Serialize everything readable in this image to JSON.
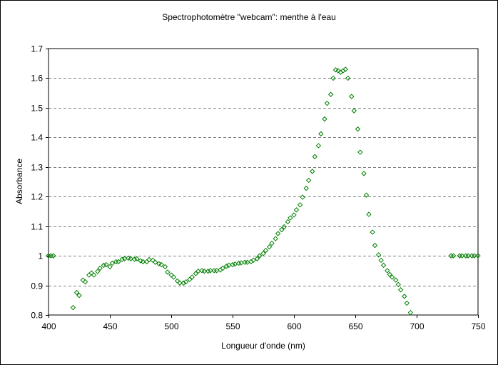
{
  "chart_data": {
    "type": "scatter",
    "title": "Spectrophotomètre \"webcam\": menthe à l'eau",
    "xlabel": "Longueur d'onde (nm)",
    "ylabel": "Absorbance",
    "xlim": [
      400,
      750
    ],
    "ylim": [
      0.8,
      1.7
    ],
    "x_ticks": [
      400,
      450,
      500,
      550,
      600,
      650,
      700,
      750
    ],
    "x_tick_labels": [
      "400",
      "450",
      "500",
      "550",
      "600",
      "650",
      "700",
      "750"
    ],
    "y_ticks": [
      0.8,
      0.9,
      1.0,
      1.1,
      1.2,
      1.3,
      1.4,
      1.5,
      1.6,
      1.7
    ],
    "y_tick_labels": [
      "0.8",
      "0.9",
      "1",
      "1.1",
      "1.2",
      "1.3",
      "1.4",
      "1.5",
      "1.6",
      "1.7"
    ],
    "grid": "horizontal dashed",
    "legend": "none",
    "marker": "open diamond",
    "marker_color": "#008000",
    "series": [
      {
        "points": [
          [
            400,
            1.0
          ],
          [
            402,
            1.0
          ],
          [
            404,
            1.0
          ],
          [
            420,
            0.825
          ],
          [
            423,
            0.876
          ],
          [
            425,
            0.866
          ],
          [
            428,
            0.918
          ],
          [
            430,
            0.912
          ],
          [
            433,
            0.935
          ],
          [
            435,
            0.942
          ],
          [
            437,
            0.935
          ],
          [
            440,
            0.947
          ],
          [
            442,
            0.958
          ],
          [
            445,
            0.968
          ],
          [
            447,
            0.97
          ],
          [
            450,
            0.963
          ],
          [
            452,
            0.975
          ],
          [
            455,
            0.98
          ],
          [
            457,
            0.98
          ],
          [
            460,
            0.988
          ],
          [
            462,
            0.99
          ],
          [
            465,
            0.992
          ],
          [
            467,
            0.99
          ],
          [
            470,
            0.988
          ],
          [
            472,
            0.99
          ],
          [
            475,
            0.983
          ],
          [
            477,
            0.98
          ],
          [
            480,
            0.98
          ],
          [
            482,
            0.987
          ],
          [
            485,
            0.985
          ],
          [
            487,
            0.978
          ],
          [
            490,
            0.973
          ],
          [
            492,
            0.97
          ],
          [
            495,
            0.963
          ],
          [
            497,
            0.945
          ],
          [
            500,
            0.935
          ],
          [
            502,
            0.928
          ],
          [
            505,
            0.915
          ],
          [
            507,
            0.908
          ],
          [
            510,
            0.908
          ],
          [
            512,
            0.912
          ],
          [
            515,
            0.92
          ],
          [
            517,
            0.928
          ],
          [
            520,
            0.94
          ],
          [
            522,
            0.948
          ],
          [
            525,
            0.95
          ],
          [
            527,
            0.948
          ],
          [
            530,
            0.948
          ],
          [
            532,
            0.95
          ],
          [
            535,
            0.95
          ],
          [
            537,
            0.95
          ],
          [
            540,
            0.952
          ],
          [
            542,
            0.958
          ],
          [
            545,
            0.965
          ],
          [
            547,
            0.968
          ],
          [
            550,
            0.97
          ],
          [
            552,
            0.972
          ],
          [
            555,
            0.975
          ],
          [
            557,
            0.976
          ],
          [
            560,
            0.978
          ],
          [
            562,
            0.978
          ],
          [
            565,
            0.98
          ],
          [
            567,
            0.985
          ],
          [
            570,
            0.99
          ],
          [
            572,
            1.0
          ],
          [
            575,
            1.008
          ],
          [
            577,
            1.018
          ],
          [
            580,
            1.03
          ],
          [
            582,
            1.042
          ],
          [
            585,
            1.058
          ],
          [
            587,
            1.075
          ],
          [
            590,
            1.088
          ],
          [
            592,
            1.098
          ],
          [
            595,
            1.115
          ],
          [
            597,
            1.128
          ],
          [
            600,
            1.138
          ],
          [
            602,
            1.155
          ],
          [
            605,
            1.172
          ],
          [
            607,
            1.198
          ],
          [
            610,
            1.228
          ],
          [
            612,
            1.255
          ],
          [
            615,
            1.285
          ],
          [
            617,
            1.335
          ],
          [
            620,
            1.372
          ],
          [
            622,
            1.412
          ],
          [
            625,
            1.462
          ],
          [
            627,
            1.515
          ],
          [
            630,
            1.545
          ],
          [
            632,
            1.6
          ],
          [
            634,
            1.628
          ],
          [
            636,
            1.625
          ],
          [
            638,
            1.62
          ],
          [
            640,
            1.625
          ],
          [
            642,
            1.63
          ],
          [
            644,
            1.6
          ],
          [
            647,
            1.538
          ],
          [
            649,
            1.49
          ],
          [
            652,
            1.428
          ],
          [
            654,
            1.35
          ],
          [
            657,
            1.278
          ],
          [
            659,
            1.205
          ],
          [
            661,
            1.14
          ],
          [
            664,
            1.08
          ],
          [
            666,
            1.035
          ],
          [
            669,
            1.003
          ],
          [
            671,
            0.985
          ],
          [
            673,
            0.968
          ],
          [
            676,
            0.95
          ],
          [
            678,
            0.937
          ],
          [
            680,
            0.928
          ],
          [
            683,
            0.918
          ],
          [
            685,
            0.903
          ],
          [
            687,
            0.885
          ],
          [
            690,
            0.863
          ],
          [
            692,
            0.84
          ],
          [
            695,
            0.808
          ],
          [
            728,
            1.0
          ],
          [
            730,
            1.0
          ],
          [
            735,
            1.0
          ],
          [
            737,
            1.0
          ],
          [
            740,
            1.0
          ],
          [
            742,
            1.0
          ],
          [
            745,
            1.0
          ],
          [
            747,
            1.0
          ],
          [
            750,
            1.0
          ]
        ]
      }
    ]
  }
}
